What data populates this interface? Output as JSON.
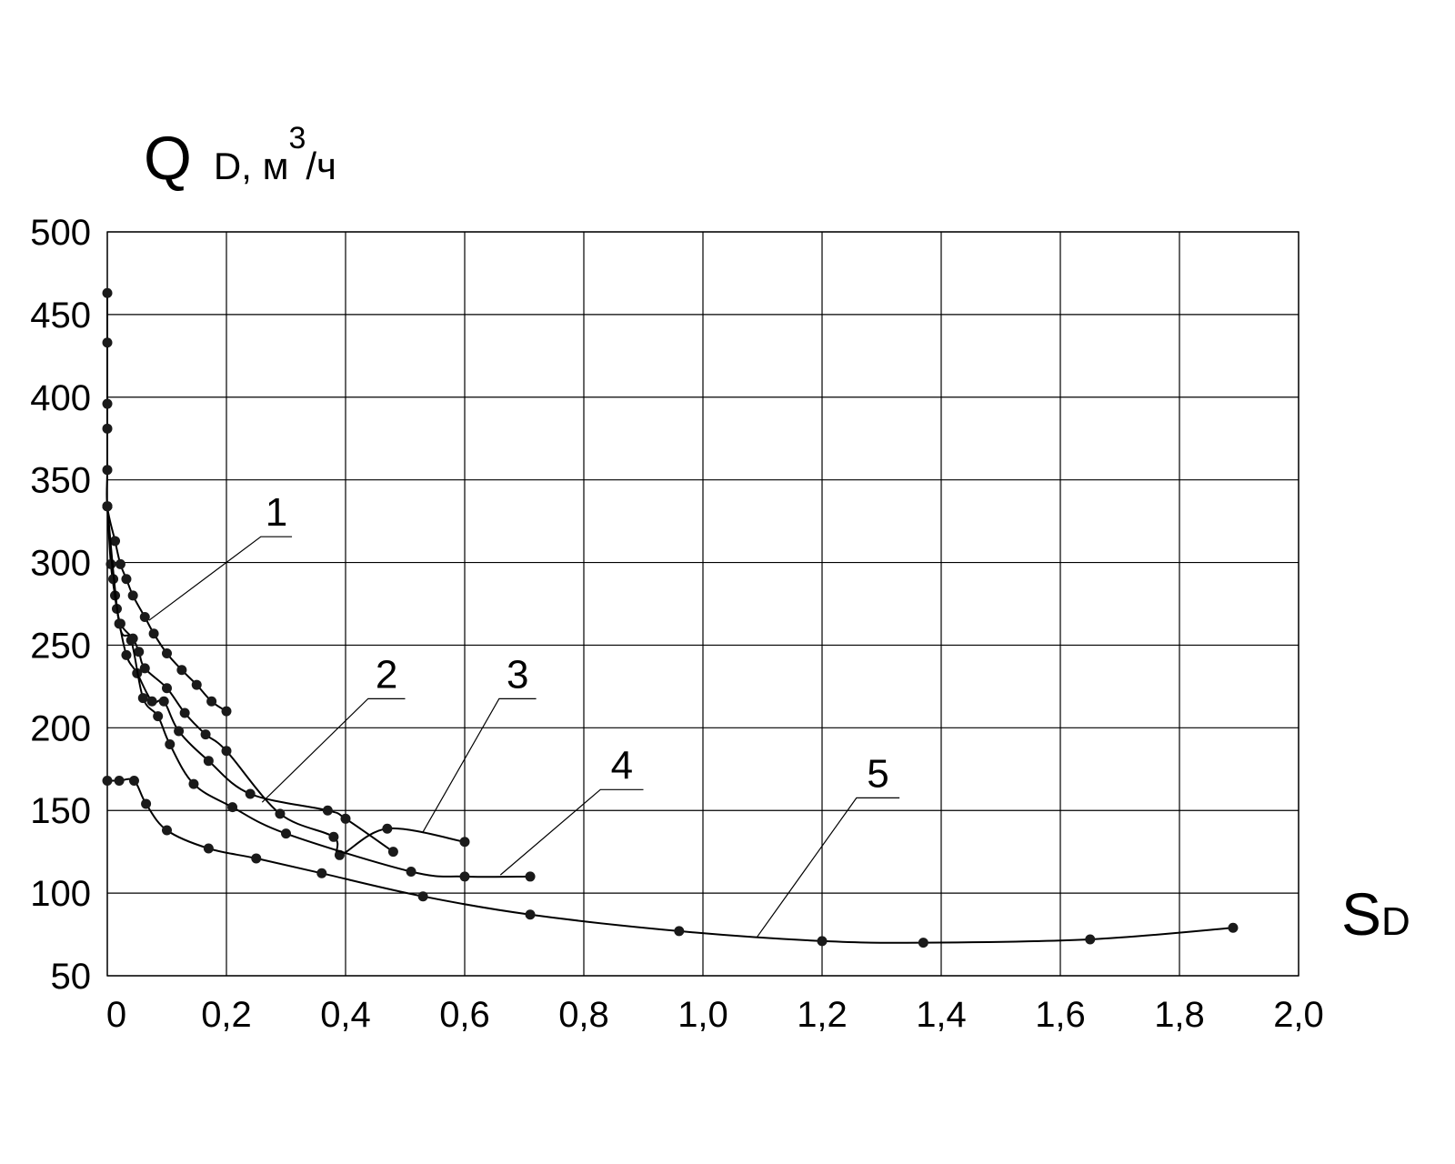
{
  "chart_data": {
    "type": "line",
    "title": "",
    "ylabel": {
      "main": "Q",
      "sub": "D, м",
      "sup": "3",
      "tail": "/ч"
    },
    "xlabel": {
      "main": "S",
      "sub": "D"
    },
    "xlim": [
      0,
      2.0
    ],
    "ylim": [
      50,
      500
    ],
    "x_ticks": [
      {
        "value": 0.0,
        "label": "0"
      },
      {
        "value": 0.2,
        "label": "0,2"
      },
      {
        "value": 0.4,
        "label": "0,4"
      },
      {
        "value": 0.6,
        "label": "0,6"
      },
      {
        "value": 0.8,
        "label": "0,8"
      },
      {
        "value": 1.0,
        "label": "1,0"
      },
      {
        "value": 1.2,
        "label": "1,2"
      },
      {
        "value": 1.4,
        "label": "1,4"
      },
      {
        "value": 1.6,
        "label": "1,6"
      },
      {
        "value": 1.8,
        "label": "1,8"
      },
      {
        "value": 2.0,
        "label": "2,0"
      }
    ],
    "y_ticks": [
      {
        "value": 500,
        "label": "500"
      },
      {
        "value": 450,
        "label": "450"
      },
      {
        "value": 400,
        "label": "400"
      },
      {
        "value": 350,
        "label": "350"
      },
      {
        "value": 300,
        "label": "300"
      },
      {
        "value": 250,
        "label": "250"
      },
      {
        "value": 200,
        "label": "200"
      },
      {
        "value": 150,
        "label": "150"
      },
      {
        "value": 100,
        "label": "100"
      },
      {
        "value": 50,
        "label": "50"
      }
    ],
    "grid": true,
    "series": [
      {
        "label": "1",
        "points": [
          [
            0,
            463
          ],
          [
            0,
            433
          ],
          [
            0,
            396
          ],
          [
            0,
            381
          ],
          [
            0,
            356
          ],
          [
            0,
            334
          ],
          [
            0.013,
            313
          ],
          [
            0.022,
            299
          ],
          [
            0.032,
            290
          ],
          [
            0.043,
            280
          ],
          [
            0.063,
            267
          ],
          [
            0.078,
            257
          ],
          [
            0.1,
            245
          ],
          [
            0.125,
            235
          ],
          [
            0.15,
            226
          ],
          [
            0.175,
            216
          ],
          [
            0.2,
            210
          ]
        ]
      },
      {
        "label": "2",
        "points": [
          [
            0,
            334
          ],
          [
            0.006,
            299
          ],
          [
            0.013,
            280
          ],
          [
            0.022,
            263
          ],
          [
            0.043,
            254
          ],
          [
            0.053,
            246
          ],
          [
            0.063,
            236
          ],
          [
            0.1,
            224
          ],
          [
            0.13,
            209
          ],
          [
            0.165,
            196
          ],
          [
            0.2,
            186
          ],
          [
            0.29,
            148
          ],
          [
            0.38,
            134
          ],
          [
            0.39,
            123
          ],
          [
            0.47,
            139
          ],
          [
            0.6,
            131
          ]
        ]
      },
      {
        "label": "3",
        "points": [
          [
            0,
            334
          ],
          [
            0.01,
            290
          ],
          [
            0.016,
            272
          ],
          [
            0.032,
            244
          ],
          [
            0.05,
            233
          ],
          [
            0.075,
            216
          ],
          [
            0.095,
            216
          ],
          [
            0.12,
            198
          ],
          [
            0.17,
            180
          ],
          [
            0.24,
            160
          ],
          [
            0.37,
            150
          ],
          [
            0.4,
            145
          ],
          [
            0.48,
            125
          ]
        ]
      },
      {
        "label": "4",
        "points": [
          [
            0,
            334
          ],
          [
            0.02,
            263
          ],
          [
            0.04,
            253
          ],
          [
            0.06,
            218
          ],
          [
            0.085,
            207
          ],
          [
            0.105,
            190
          ],
          [
            0.145,
            166
          ],
          [
            0.21,
            152
          ],
          [
            0.3,
            136
          ],
          [
            0.51,
            113
          ],
          [
            0.6,
            110
          ],
          [
            0.71,
            110
          ]
        ]
      },
      {
        "label": "5",
        "points": [
          [
            0,
            168
          ],
          [
            0.02,
            168
          ],
          [
            0.045,
            168
          ],
          [
            0.065,
            154
          ],
          [
            0.1,
            138
          ],
          [
            0.17,
            127
          ],
          [
            0.25,
            121
          ],
          [
            0.36,
            112
          ],
          [
            0.53,
            98
          ],
          [
            0.71,
            87
          ],
          [
            0.96,
            77
          ],
          [
            1.2,
            71
          ],
          [
            1.37,
            70
          ],
          [
            1.65,
            72
          ],
          [
            1.89,
            79
          ]
        ]
      }
    ],
    "annotations": [
      {
        "text": "1",
        "series": "1",
        "at": [
          0.07,
          265
        ],
        "label_at": [
          0.27,
          320
        ],
        "shelf_to": 0.31
      },
      {
        "text": "2",
        "series": "2",
        "at": [
          0.26,
          155
        ],
        "label_at": [
          0.45,
          222
        ],
        "shelf_to": 0.5
      },
      {
        "text": "3",
        "series": "3",
        "at": [
          0.53,
          137
        ],
        "label_at": [
          0.67,
          222
        ],
        "shelf_to": 0.72
      },
      {
        "text": "4",
        "series": "4",
        "at": [
          0.66,
          111
        ],
        "label_at": [
          0.84,
          167
        ],
        "shelf_to": 0.9
      },
      {
        "text": "5",
        "series": "5",
        "at": [
          1.09,
          73
        ],
        "label_at": [
          1.27,
          162
        ],
        "shelf_to": 1.33
      }
    ]
  }
}
